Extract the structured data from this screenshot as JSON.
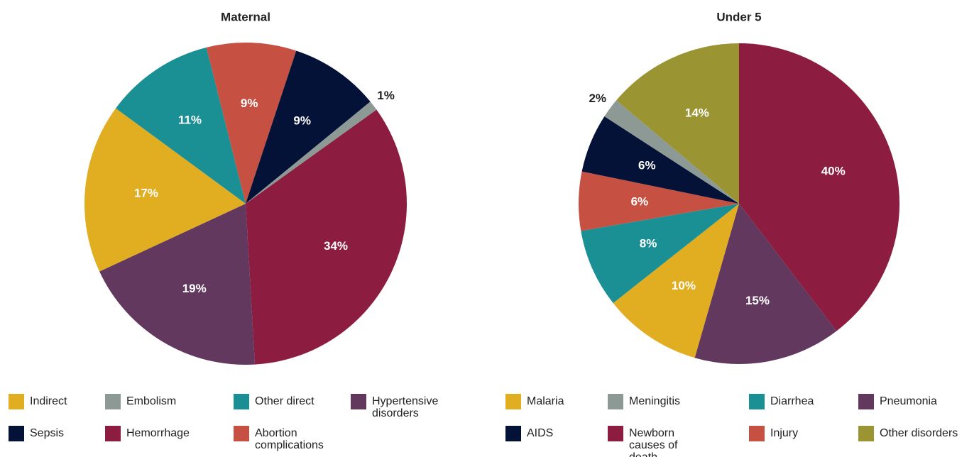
{
  "chart_data": [
    {
      "type": "pie",
      "title": "Maternal",
      "categories": [
        "Hemorrhage",
        "Hypertensive disorders",
        "Indirect",
        "Other direct",
        "Abortion complications",
        "Sepsis",
        "Embolism"
      ],
      "values": [
        34,
        19,
        17,
        11,
        9,
        9,
        1
      ],
      "value_labels": [
        "34%",
        "19%",
        "17%",
        "11%",
        "9%",
        "9%",
        "1%"
      ],
      "colors": [
        "#8c1d40",
        "#62385e",
        "#e1ad21",
        "#1b9094",
        "#c65042",
        "#041238",
        "#8d9995"
      ]
    },
    {
      "type": "pie",
      "title": "Under 5",
      "categories": [
        "Newborn causes of death",
        "Pneumonia",
        "Malaria",
        "Diarrhea",
        "Injury",
        "AIDS",
        "Meningitis",
        "Other disorders"
      ],
      "values": [
        40,
        15,
        10,
        8,
        6,
        6,
        2,
        14
      ],
      "value_labels": [
        "40%",
        "15%",
        "10%",
        "8%",
        "6%",
        "6%",
        "2%",
        "14%"
      ],
      "colors": [
        "#8c1d40",
        "#62385e",
        "#e1ad21",
        "#1b9094",
        "#c65042",
        "#041238",
        "#8d9995",
        "#9a9433"
      ]
    }
  ]
}
